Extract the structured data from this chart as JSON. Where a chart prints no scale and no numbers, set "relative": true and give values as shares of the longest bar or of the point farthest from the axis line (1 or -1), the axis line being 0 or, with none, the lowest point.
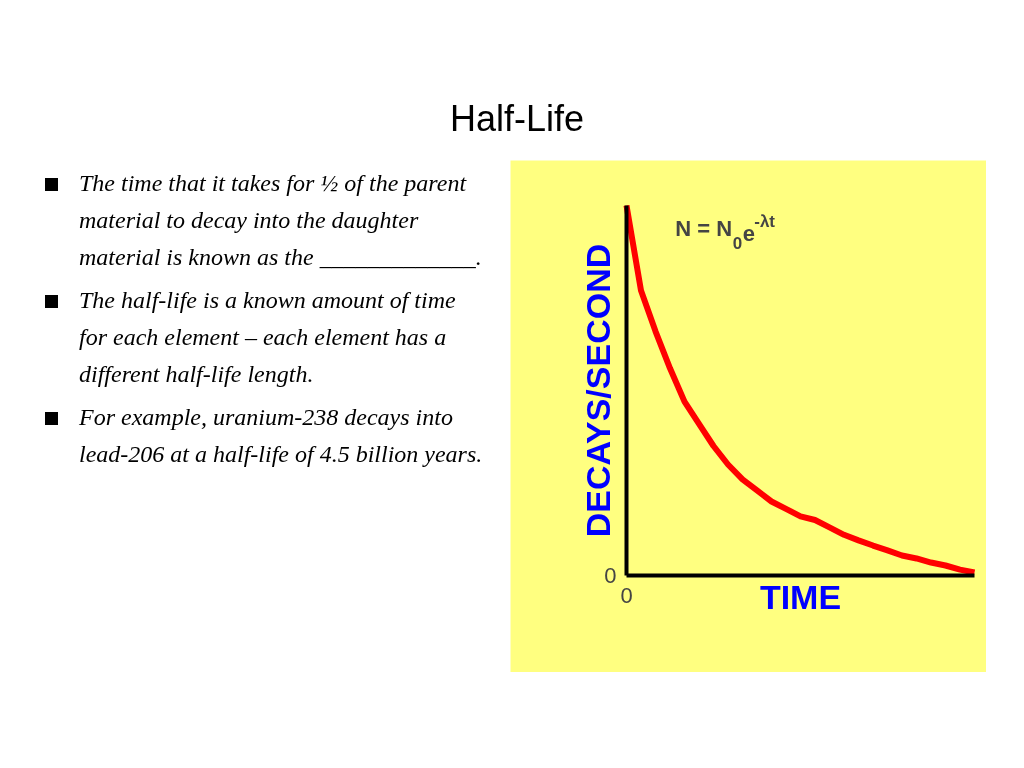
{
  "chart_data": {
    "type": "line",
    "relative": true,
    "title": "Half-Life",
    "xlabel": "TIME",
    "ylabel": "DECAYS/SECOND",
    "categories": [
      null,
      null,
      null,
      null,
      null,
      null,
      null,
      null,
      null,
      null,
      null,
      null,
      null,
      null,
      null,
      null,
      null,
      null,
      null,
      null,
      null,
      null,
      null,
      null,
      null
    ],
    "series": [
      {
        "color": "#ff0000",
        "values": [
          1,
          0.77,
          0.66,
          0.56,
          0.47,
          0.41,
          0.35,
          0.3,
          0.26,
          0.23,
          0.2,
          0.18,
          0.16,
          0.15,
          0.13,
          0.11,
          0.095,
          0.081,
          0.068,
          0.054,
          0.046,
          0.035,
          0.027,
          0.016,
          0.008
        ]
      }
    ],
    "annotations": [
      "0",
      "N = N$_{0}$e$^{-λt}$",
      "The time that it takes for ½ of the parent material to decay into the daughter material is known as the _____________.",
      "The half-life is a known amount of time for each element – each element has a different half-life length.",
      "For example, uranium-238 decays into lead-206 at a half-life of 4.5 billion years."
    ],
    "legend": false,
    "marker": "none",
    "line_style": "solid"
  }
}
